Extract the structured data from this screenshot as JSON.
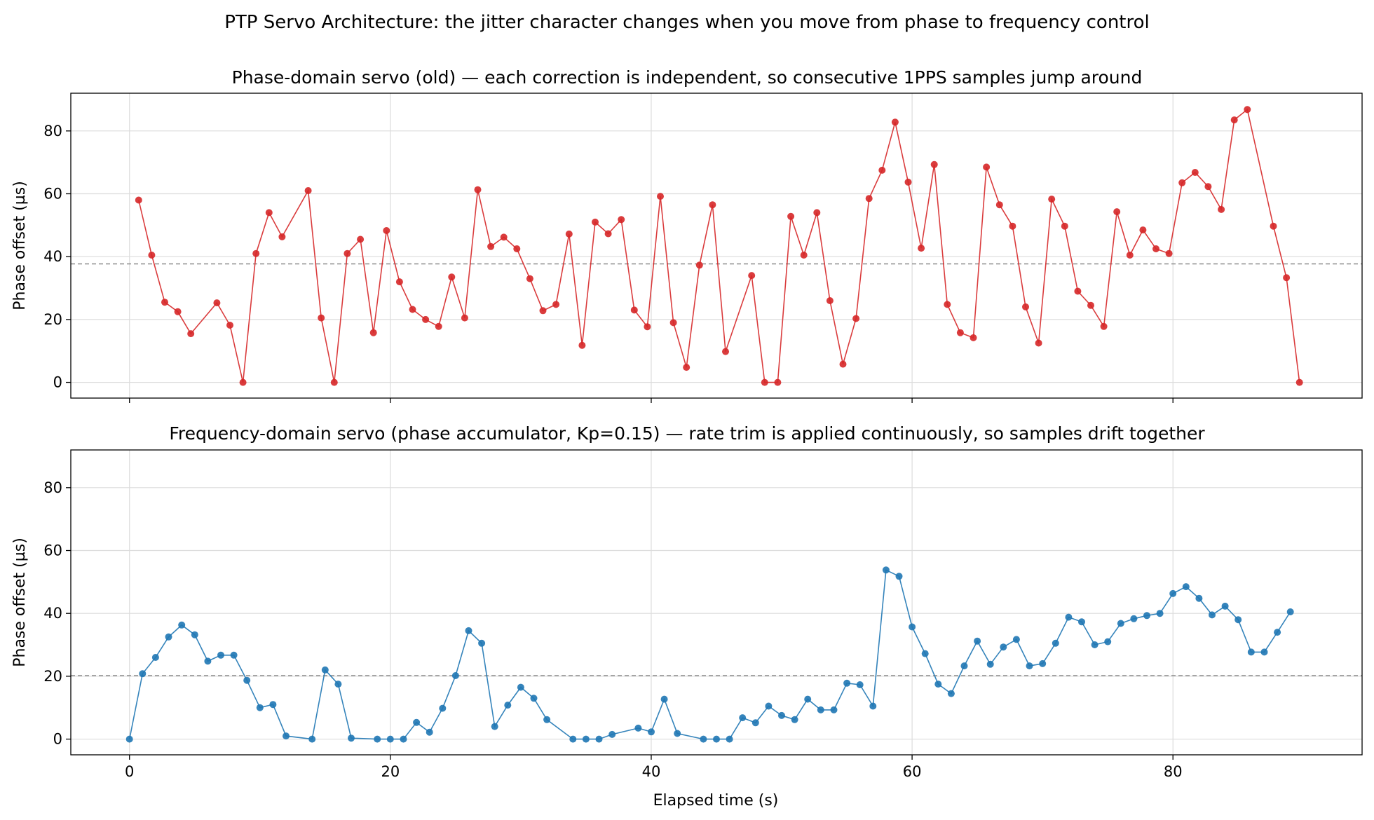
{
  "suptitle": "PTP Servo Architecture: the jitter character changes when you move from phase to frequency control",
  "chart_data": [
    {
      "type": "line",
      "title": "Phase-domain servo (old) — each correction is independent, so consecutive 1PPS samples jump around",
      "xlabel": "",
      "ylabel": "Phase offset (µs)",
      "xlim": [
        -4.5,
        94.5
      ],
      "ylim": [
        -5,
        92
      ],
      "xticks": [
        0,
        20,
        40,
        60,
        80
      ],
      "yticks": [
        0,
        20,
        40,
        60,
        80
      ],
      "show_xticklabels": false,
      "grid": true,
      "reference_line": 37.7,
      "color": "#d62728",
      "x": [
        0.7,
        1.7,
        2.7,
        3.7,
        4.7,
        6.7,
        7.7,
        8.7,
        9.7,
        10.7,
        11.7,
        13.7,
        14.7,
        15.7,
        16.7,
        17.7,
        18.7,
        19.7,
        20.7,
        21.7,
        22.7,
        23.7,
        24.7,
        25.7,
        26.7,
        27.7,
        28.7,
        29.7,
        30.7,
        31.7,
        32.7,
        33.7,
        34.7,
        35.7,
        36.7,
        37.7,
        38.7,
        39.7,
        40.7,
        41.7,
        42.7,
        43.7,
        44.7,
        45.7,
        47.7,
        48.7,
        49.7,
        50.7,
        51.7,
        52.7,
        53.7,
        54.7,
        55.7,
        56.7,
        57.7,
        58.7,
        59.7,
        60.7,
        61.7,
        62.7,
        63.7,
        64.7,
        65.7,
        66.7,
        67.7,
        68.7,
        69.7,
        70.7,
        71.7,
        72.7,
        73.7,
        74.7,
        75.7,
        76.7,
        77.7,
        78.7,
        79.7,
        80.7,
        81.7,
        82.7,
        83.7,
        84.7,
        85.7,
        87.7,
        88.7,
        89.7
      ],
      "y": [
        58,
        40.5,
        25.5,
        22.5,
        15.5,
        25.3,
        18.2,
        0,
        41,
        54,
        46.3,
        61,
        20.5,
        0,
        41,
        45.5,
        15.8,
        48.3,
        32,
        23.2,
        20,
        17.8,
        33.5,
        20.5,
        61.3,
        43.2,
        46.2,
        42.5,
        33,
        22.8,
        24.8,
        47.2,
        11.8,
        51,
        47.3,
        51.8,
        23,
        17.7,
        59.2,
        19,
        4.8,
        37.3,
        56.5,
        9.8,
        34,
        0,
        0,
        52.8,
        40.5,
        54,
        26,
        5.8,
        20.3,
        58.5,
        67.5,
        82.8,
        63.7,
        42.7,
        69.3,
        24.8,
        15.8,
        14.2,
        68.5,
        56.5,
        49.7,
        24,
        12.5,
        58.3,
        49.7,
        29,
        24.5,
        17.8,
        54.3,
        40.5,
        48.5,
        42.5,
        41,
        63.5,
        66.8,
        62.3,
        55,
        83.5,
        86.8,
        49.7,
        33.3,
        0
      ]
    },
    {
      "type": "line",
      "title": "Frequency-domain servo (phase accumulator, Kp=0.15) — rate trim is applied continuously, so samples drift together",
      "xlabel": "Elapsed time (s)",
      "ylabel": "Phase offset (µs)",
      "xlim": [
        -4.5,
        94.5
      ],
      "ylim": [
        -5,
        92
      ],
      "xticks": [
        0,
        20,
        40,
        60,
        80
      ],
      "yticks": [
        0,
        20,
        40,
        60,
        80
      ],
      "show_xticklabels": true,
      "grid": true,
      "reference_line": 20.2,
      "color": "#1f77b4",
      "x": [
        0,
        1,
        2,
        3,
        4,
        5,
        6,
        7,
        8,
        9,
        10,
        11,
        12,
        14,
        15,
        16,
        17,
        19,
        20,
        21,
        22,
        23,
        24,
        25,
        26,
        27,
        28,
        29,
        30,
        31,
        32,
        34,
        35,
        36,
        37,
        39,
        40,
        41,
        42,
        44,
        45,
        46,
        47,
        48,
        49,
        50,
        51,
        52,
        53,
        54,
        55,
        56,
        57,
        58,
        59,
        60,
        61,
        62,
        63,
        64,
        65,
        66,
        67,
        68,
        69,
        70,
        71,
        72,
        73,
        74,
        75,
        76,
        77,
        78,
        79,
        80,
        81,
        82,
        83,
        84,
        85,
        86,
        87,
        88,
        89
      ],
      "y": [
        0,
        20.8,
        26,
        32.5,
        36.3,
        33.2,
        24.8,
        26.7,
        26.7,
        18.7,
        10,
        11,
        1,
        0,
        22,
        17.5,
        0.3,
        0,
        0,
        0,
        5.3,
        2.2,
        9.8,
        20.2,
        34.5,
        30.5,
        4,
        10.8,
        16.5,
        13,
        6.2,
        0,
        0,
        0,
        1.5,
        3.5,
        2.3,
        12.7,
        1.8,
        0,
        0,
        0,
        6.8,
        5.2,
        10.5,
        7.5,
        6.2,
        12.7,
        9.3,
        9.3,
        17.8,
        17.3,
        10.5,
        53.8,
        51.8,
        35.7,
        27.2,
        17.5,
        14.5,
        23.3,
        31.2,
        23.8,
        29.3,
        31.7,
        23.3,
        24,
        30.5,
        38.8,
        37.3,
        30,
        31,
        36.8,
        38.3,
        39.3,
        40,
        46.3,
        48.5,
        44.8,
        39.5,
        42.3,
        38,
        27.7,
        27.7,
        34,
        40.5
      ]
    }
  ]
}
